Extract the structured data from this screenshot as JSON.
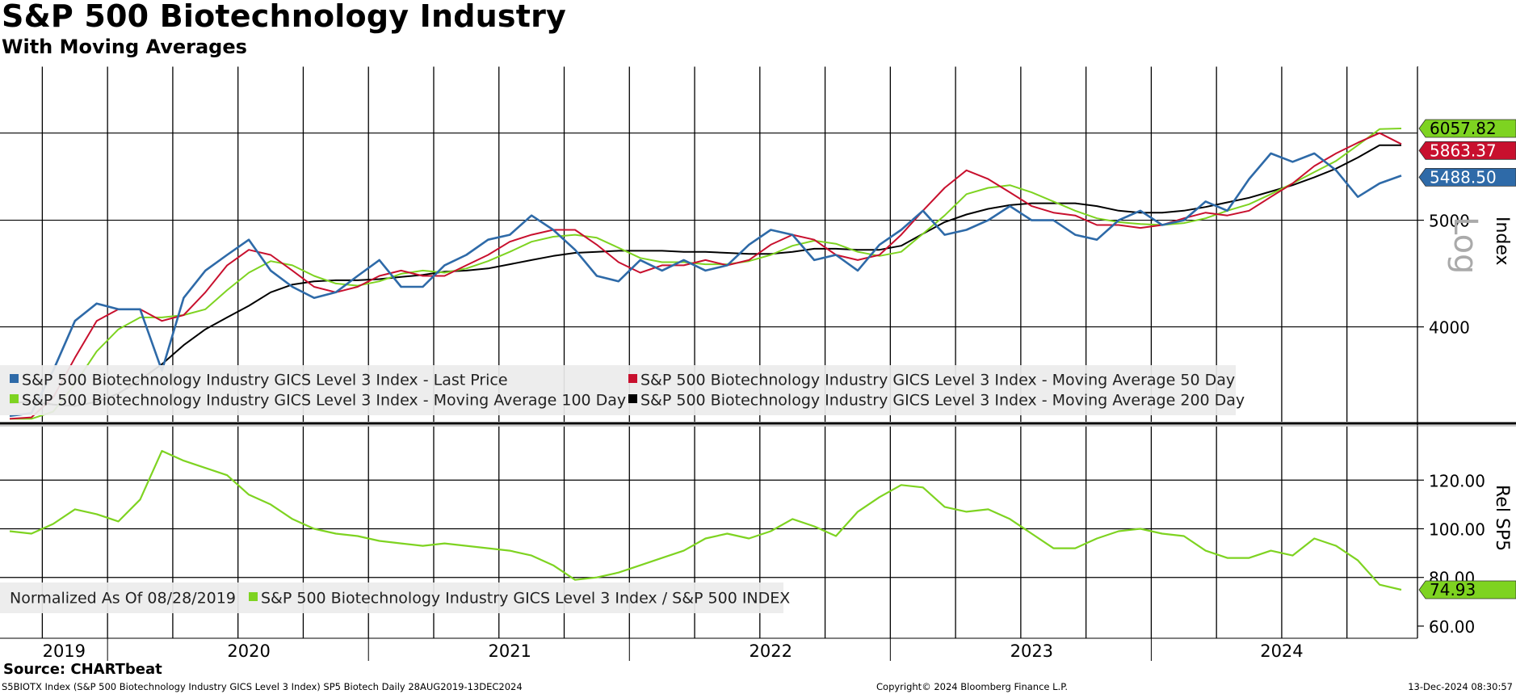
{
  "header": {
    "title": "S&P 500 Biotechnology Industry",
    "subtitle": "With Moving Averages"
  },
  "footer": {
    "source": "Source: CHARTbeat",
    "ticker_line": "S5BIOTX Index (S&P 500 Biotechnology Industry GICS Level 3 Index) SP5 Biotech  Daily 28AUG2019-13DEC2024",
    "copyright": "Copyright© 2024 Bloomberg Finance L.P.",
    "timestamp": "13-Dec-2024 08:30:57"
  },
  "colors": {
    "last_price": "#2e6aa8",
    "ma50": "#c8102e",
    "ma100": "#7ed321",
    "ma200": "#000000",
    "relative": "#7ed321"
  },
  "legend_top": {
    "items": [
      "S&P 500 Biotechnology Industry GICS Level 3 Index - Last Price",
      "S&P 500 Biotechnology Industry GICS Level 3 Index - Moving Average 50 Day",
      "S&P 500 Biotechnology Industry GICS Level 3 Index - Moving Average 100 Day",
      "S&P 500 Biotechnology Industry GICS Level 3 Index - Moving Average 200 Day"
    ]
  },
  "legend_bottom": {
    "note": "Normalized As Of 08/28/2019",
    "item": "S&P 500 Biotechnology Industry GICS Level 3 Index / S&P 500 INDEX"
  },
  "chart_data": [
    {
      "type": "line",
      "panel": "top",
      "title": "S&P 500 Biotechnology Industry",
      "subtitle": "With Moving Averages",
      "ylabel": "Index",
      "yscale_label": "Log",
      "yscale": "log",
      "ylim": [
        3280,
        6900
      ],
      "yticks": [
        4000,
        5000
      ],
      "ytick_labels": [
        "4000",
        "5000"
      ],
      "x_labels": [
        "2019",
        "2020",
        "2021",
        "2022",
        "2023",
        "2024"
      ],
      "x": [
        "2019-08",
        "2019-09",
        "2019-10",
        "2019-11",
        "2019-12",
        "2020-01",
        "2020-02",
        "2020-03",
        "2020-04",
        "2020-05",
        "2020-06",
        "2020-07",
        "2020-08",
        "2020-09",
        "2020-10",
        "2020-11",
        "2020-12",
        "2021-01",
        "2021-02",
        "2021-03",
        "2021-04",
        "2021-05",
        "2021-06",
        "2021-07",
        "2021-08",
        "2021-09",
        "2021-10",
        "2021-11",
        "2021-12",
        "2022-01",
        "2022-02",
        "2022-03",
        "2022-04",
        "2022-05",
        "2022-06",
        "2022-07",
        "2022-08",
        "2022-09",
        "2022-10",
        "2022-11",
        "2022-12",
        "2023-01",
        "2023-02",
        "2023-03",
        "2023-04",
        "2023-05",
        "2023-06",
        "2023-07",
        "2023-08",
        "2023-09",
        "2023-10",
        "2023-11",
        "2023-12",
        "2024-01",
        "2024-02",
        "2024-03",
        "2024-04",
        "2024-05",
        "2024-06",
        "2024-07",
        "2024-08",
        "2024-09",
        "2024-10",
        "2024-11",
        "2024-12"
      ],
      "series": [
        {
          "name": "S&P 500 Biotechnology Industry GICS Level 3 Index - Last Price",
          "values": [
            3320,
            3340,
            3650,
            4050,
            4200,
            4150,
            4150,
            3650,
            4250,
            4500,
            4650,
            4800,
            4500,
            4350,
            4250,
            4300,
            4450,
            4600,
            4350,
            4350,
            4550,
            4650,
            4800,
            4850,
            5050,
            4900,
            4700,
            4450,
            4400,
            4600,
            4500,
            4600,
            4500,
            4550,
            4750,
            4900,
            4850,
            4600,
            4650,
            4500,
            4750,
            4900,
            5100,
            4850,
            4900,
            5000,
            5150,
            5000,
            5000,
            4850,
            4800,
            5000,
            5100,
            4950,
            5000,
            5200,
            5100,
            5450,
            5750,
            5650,
            5750,
            5550,
            5250,
            5400,
            5488.5
          ]
        },
        {
          "name": "S&P 500 Biotechnology Industry GICS Level 3 Index - Moving Average 50 Day",
          "values": [
            3300,
            3310,
            3450,
            3750,
            4050,
            4150,
            4150,
            4050,
            4100,
            4300,
            4550,
            4700,
            4650,
            4500,
            4350,
            4300,
            4350,
            4450,
            4500,
            4450,
            4450,
            4550,
            4650,
            4780,
            4850,
            4900,
            4900,
            4750,
            4580,
            4480,
            4550,
            4550,
            4600,
            4550,
            4600,
            4750,
            4850,
            4800,
            4650,
            4600,
            4650,
            4850,
            5100,
            5350,
            5550,
            5450,
            5300,
            5150,
            5080,
            5050,
            4950,
            4950,
            4920,
            4950,
            5020,
            5080,
            5050,
            5100,
            5250,
            5400,
            5600,
            5750,
            5880,
            6000,
            5863.37
          ]
        },
        {
          "name": "S&P 500 Biotechnology Industry GICS Level 3 Index - Moving Average 100 Day",
          "values": [
            3300,
            3300,
            3350,
            3550,
            3800,
            3980,
            4080,
            4080,
            4100,
            4150,
            4320,
            4480,
            4590,
            4550,
            4450,
            4380,
            4360,
            4400,
            4470,
            4500,
            4480,
            4520,
            4590,
            4680,
            4780,
            4830,
            4850,
            4820,
            4720,
            4620,
            4580,
            4580,
            4560,
            4560,
            4590,
            4650,
            4740,
            4790,
            4760,
            4680,
            4640,
            4680,
            4860,
            5050,
            5280,
            5350,
            5380,
            5300,
            5200,
            5100,
            5020,
            4980,
            4960,
            4950,
            4970,
            5020,
            5100,
            5170,
            5280,
            5400,
            5530,
            5660,
            5850,
            6050,
            6057.82
          ]
        },
        {
          "name": "S&P 500 Biotechnology Industry GICS Level 3 Index - Moving Average 200 Day",
          "values": [
            3410,
            3420,
            3400,
            3390,
            3420,
            3480,
            3580,
            3700,
            3850,
            3980,
            4080,
            4180,
            4300,
            4370,
            4400,
            4410,
            4410,
            4420,
            4440,
            4460,
            4490,
            4500,
            4520,
            4560,
            4600,
            4640,
            4670,
            4680,
            4690,
            4690,
            4690,
            4680,
            4680,
            4670,
            4660,
            4660,
            4680,
            4710,
            4710,
            4700,
            4700,
            4740,
            4860,
            4980,
            5060,
            5120,
            5160,
            5180,
            5180,
            5180,
            5150,
            5100,
            5080,
            5080,
            5100,
            5140,
            5190,
            5240,
            5310,
            5380,
            5470,
            5570,
            5700,
            5850,
            5850
          ]
        }
      ],
      "value_labels": [
        "6057.82",
        "5863.37",
        "5488.50"
      ]
    },
    {
      "type": "line",
      "panel": "bottom",
      "ylabel": "Rel SP5",
      "ylim": [
        55,
        142
      ],
      "yticks": [
        60,
        80,
        100,
        120
      ],
      "ytick_labels": [
        "60.00",
        "80.00",
        "100.00",
        "120.00"
      ],
      "x_labels": [
        "2019",
        "2020",
        "2021",
        "2022",
        "2023",
        "2024"
      ],
      "x": [
        "2019-08",
        "2019-09",
        "2019-10",
        "2019-11",
        "2019-12",
        "2020-01",
        "2020-02",
        "2020-03",
        "2020-04",
        "2020-05",
        "2020-06",
        "2020-07",
        "2020-08",
        "2020-09",
        "2020-10",
        "2020-11",
        "2020-12",
        "2021-01",
        "2021-02",
        "2021-03",
        "2021-04",
        "2021-05",
        "2021-06",
        "2021-07",
        "2021-08",
        "2021-09",
        "2021-10",
        "2021-11",
        "2021-12",
        "2022-01",
        "2022-02",
        "2022-03",
        "2022-04",
        "2022-05",
        "2022-06",
        "2022-07",
        "2022-08",
        "2022-09",
        "2022-10",
        "2022-11",
        "2022-12",
        "2023-01",
        "2023-02",
        "2023-03",
        "2023-04",
        "2023-05",
        "2023-06",
        "2023-07",
        "2023-08",
        "2023-09",
        "2023-10",
        "2023-11",
        "2023-12",
        "2024-01",
        "2024-02",
        "2024-03",
        "2024-04",
        "2024-05",
        "2024-06",
        "2024-07",
        "2024-08",
        "2024-09",
        "2024-10",
        "2024-11",
        "2024-12"
      ],
      "series": [
        {
          "name": "S&P 500 Biotechnology Industry GICS Level 3 Index / S&P 500 INDEX",
          "values": [
            99,
            98,
            102,
            108,
            106,
            103,
            112,
            132,
            128,
            125,
            122,
            114,
            110,
            104,
            100,
            98,
            97,
            95,
            94,
            93,
            94,
            93,
            92,
            91,
            89,
            85,
            79,
            80,
            82,
            85,
            88,
            91,
            96,
            98,
            96,
            99,
            104,
            101,
            97,
            107,
            113,
            118,
            117,
            109,
            107,
            108,
            104,
            98,
            92,
            92,
            96,
            99,
            100,
            98,
            97,
            91,
            88,
            88,
            91,
            89,
            96,
            93,
            87,
            77,
            74.93
          ]
        }
      ],
      "value_labels": [
        "74.93"
      ]
    }
  ]
}
